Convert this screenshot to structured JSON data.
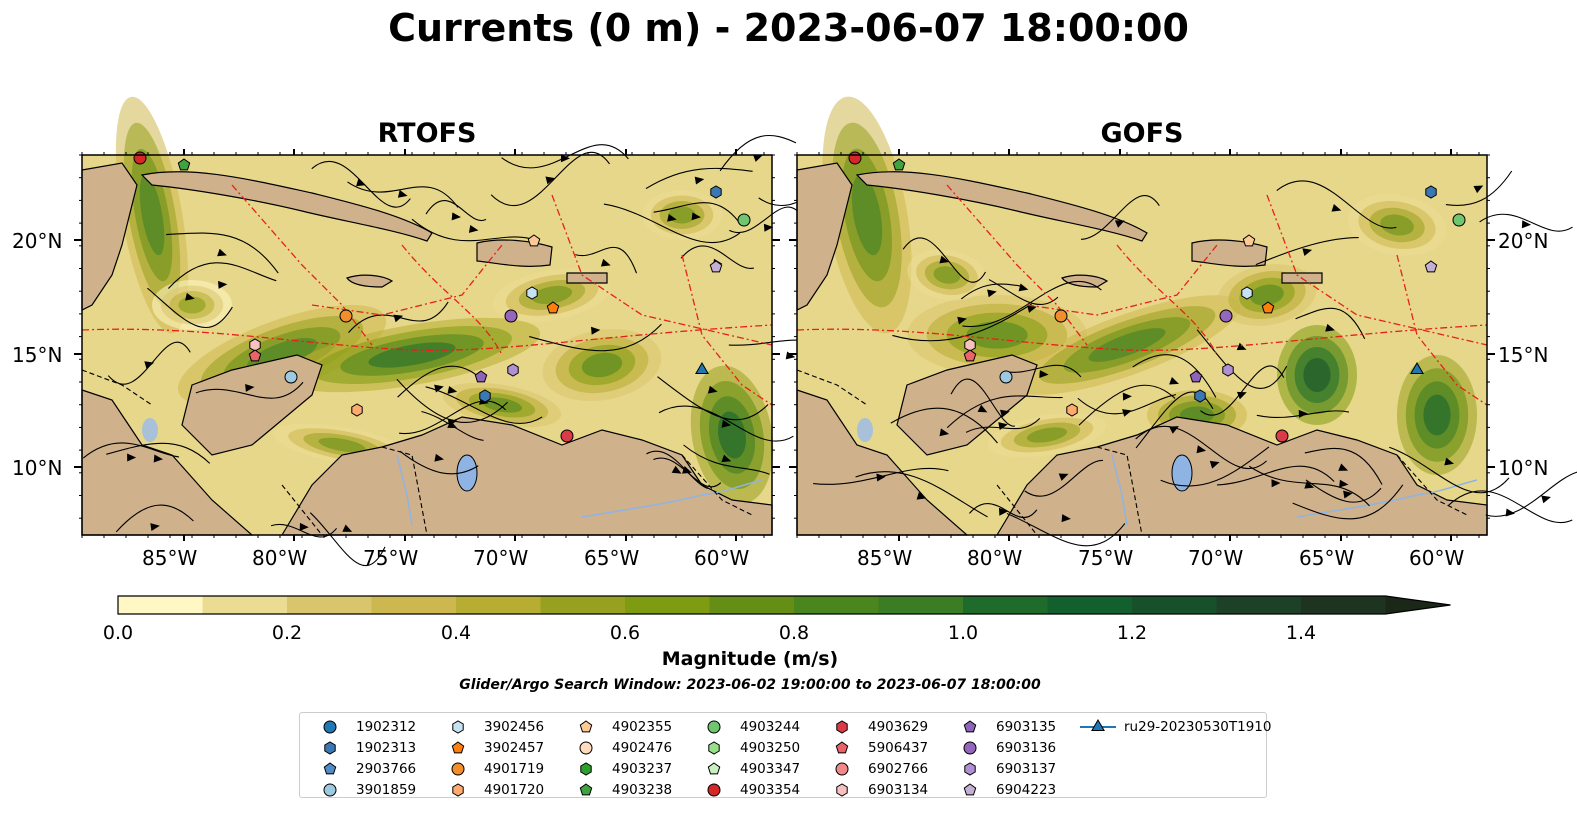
{
  "title": "Currents (0 m) - 2023-06-07 18:00:00",
  "panels": [
    {
      "title": "RTOFS"
    },
    {
      "title": "GOFS"
    }
  ],
  "axes": {
    "lon_labels": [
      "85°W",
      "80°W",
      "75°W",
      "70°W",
      "65°W",
      "60°W"
    ],
    "lat_labels": [
      "20°N",
      "15°N",
      "10°N"
    ]
  },
  "colorbar": {
    "label": "Magnitude (m/s)",
    "ticks": [
      "0.0",
      "0.2",
      "0.4",
      "0.6",
      "0.8",
      "1.0",
      "1.2",
      "1.4"
    ],
    "range": [
      0,
      1.5
    ],
    "step": 0.1,
    "extend": "max",
    "colors": [
      "#fff7c4",
      "#ebdc93",
      "#d9c56b",
      "#cdb84f",
      "#b7ad32",
      "#97a11f",
      "#7f9b12",
      "#648e14",
      "#4b851d",
      "#3a7d24",
      "#1f6b2c",
      "#12602e",
      "#16512b",
      "#1c4126",
      "#1f3420",
      "#1b2818"
    ]
  },
  "subtitle": "Glider/Argo Search Window: 2023-06-02 19:00:00 to 2023-06-07 18:00:00",
  "legend": [
    {
      "label": "1902312",
      "marker": "circle",
      "color": "#1f77b4"
    },
    {
      "label": "1902313",
      "marker": "hexagon",
      "color": "#3a78b3"
    },
    {
      "label": "2903766",
      "marker": "pentagon",
      "color": "#4f8dc4"
    },
    {
      "label": "3901859",
      "marker": "circle",
      "color": "#9ecae1"
    },
    {
      "label": "3902456",
      "marker": "hexagon",
      "color": "#c6e3f3"
    },
    {
      "label": "3902457",
      "marker": "pentagon",
      "color": "#ff7f0e"
    },
    {
      "label": "4901719",
      "marker": "circle",
      "color": "#f28e2b"
    },
    {
      "label": "4901720",
      "marker": "hexagon",
      "color": "#ffab6e"
    },
    {
      "label": "4902355",
      "marker": "pentagon",
      "color": "#ffc996"
    },
    {
      "label": "4902476",
      "marker": "circle",
      "color": "#ffdcbd"
    },
    {
      "label": "4903237",
      "marker": "hexagon",
      "color": "#2ca02c"
    },
    {
      "label": "4903238",
      "marker": "pentagon",
      "color": "#3fa33f"
    },
    {
      "label": "4903244",
      "marker": "circle",
      "color": "#6fc66f"
    },
    {
      "label": "4903250",
      "marker": "hexagon",
      "color": "#98df8a"
    },
    {
      "label": "4903347",
      "marker": "pentagon",
      "color": "#c8f0c0"
    },
    {
      "label": "4903354",
      "marker": "circle",
      "color": "#d62728"
    },
    {
      "label": "4903629",
      "marker": "hexagon",
      "color": "#d93b48"
    },
    {
      "label": "5906437",
      "marker": "pentagon",
      "color": "#e8636a"
    },
    {
      "label": "6902766",
      "marker": "circle",
      "color": "#f08a8a"
    },
    {
      "label": "6903134",
      "marker": "hexagon",
      "color": "#f9c0c0"
    },
    {
      "label": "6903135",
      "marker": "pentagon",
      "color": "#8f64b8"
    },
    {
      "label": "6903136",
      "marker": "circle",
      "color": "#9467bd"
    },
    {
      "label": "6903137",
      "marker": "hexagon",
      "color": "#b08fd3"
    },
    {
      "label": "6904223",
      "marker": "pentagon",
      "color": "#c5b0d5"
    },
    {
      "label": "ru29-20230530T1910",
      "marker": "triangle-line",
      "color": "#1f77b4"
    }
  ]
}
